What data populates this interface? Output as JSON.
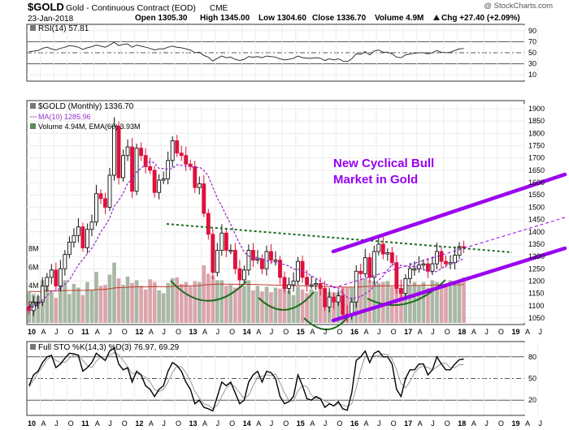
{
  "header": {
    "symbol": "$GOLD",
    "description": "Gold - Continuous Contract (EOD)",
    "exchange": "CME",
    "watermark": "@ StockCharts.com",
    "date": "23-Jan-2018",
    "open": "Open 1305.30",
    "high": "High 1345.00",
    "low": "Low 1304.60",
    "close": "Close 1336.70",
    "volume": "Volume 4.9M",
    "change": "Chg +27.40 (+2.09%)",
    "change_arrow": "up-triangle-icon"
  },
  "colors": {
    "up": "#111111",
    "down": "#e0103c",
    "ma": "#9933cc",
    "channel": "#9900ee",
    "neckline": "#1f6b1f",
    "arcs": "#1f6b1f",
    "vol_up": "#a9b8a4",
    "vol_down": "#dca4ad",
    "ema": "#c0392b"
  },
  "rsi": {
    "label": "RSI(14) 57.81",
    "ticks": [
      10,
      30,
      50,
      70,
      90
    ]
  },
  "price": {
    "legend_title": "$GOLD (Monthly) 1336.70",
    "legend_ma": "MA(10) 1285.96",
    "legend_vol": "Volume 4.94M, EMA(60) 3.93M",
    "ticks": [
      1050,
      1100,
      1150,
      1200,
      1250,
      1300,
      1350,
      1400,
      1450,
      1500,
      1550,
      1600,
      1650,
      1700,
      1750,
      1800,
      1850,
      1900
    ],
    "vol_ticks": [
      "2M",
      "4M",
      "6M",
      "8M"
    ],
    "annotation_line1": "New Cyclical Bull",
    "annotation_line2": "Market in Gold"
  },
  "sto": {
    "label": "Full STO %K(14,3) %D(3) 76.97, 69.29",
    "ticks": [
      20,
      50,
      80
    ]
  },
  "x_axis": {
    "labels": [
      "10",
      "A",
      "J",
      "O",
      "11",
      "A",
      "J",
      "O",
      "12",
      "A",
      "J",
      "O",
      "13",
      "A",
      "J",
      "O",
      "14",
      "A",
      "J",
      "O",
      "15",
      "A",
      "J",
      "O",
      "16",
      "A",
      "J",
      "O",
      "17",
      "A",
      "J",
      "O",
      "18",
      "A",
      "J",
      "O",
      "19",
      "A",
      "J"
    ]
  },
  "chart_data": {
    "type": "candlestick",
    "title": "$GOLD (Monthly)",
    "start": "2010-01",
    "ylim": [
      1030,
      1920
    ],
    "close": [
      1080,
      1115,
      1115,
      1180,
      1215,
      1245,
      1180,
      1250,
      1308,
      1358,
      1385,
      1420,
      1335,
      1410,
      1440,
      1555,
      1535,
      1500,
      1630,
      1830,
      1620,
      1710,
      1745,
      1565,
      1740,
      1710,
      1665,
      1650,
      1560,
      1610,
      1615,
      1690,
      1770,
      1720,
      1710,
      1675,
      1665,
      1580,
      1595,
      1475,
      1390,
      1235,
      1325,
      1395,
      1325,
      1325,
      1250,
      1205,
      1245,
      1325,
      1285,
      1290,
      1250,
      1320,
      1285,
      1285,
      1215,
      1170,
      1185,
      1200,
      1280,
      1215,
      1185,
      1185,
      1190,
      1170,
      1095,
      1135,
      1115,
      1140,
      1065,
      1060,
      1115,
      1240,
      1230,
      1295,
      1215,
      1320,
      1350,
      1310,
      1315,
      1275,
      1170,
      1150,
      1210,
      1250,
      1250,
      1265,
      1270,
      1240,
      1270,
      1320,
      1280,
      1270,
      1275,
      1305,
      1340,
      1336
    ],
    "rsi": [
      52,
      53,
      54,
      58,
      60,
      57,
      55,
      58,
      60,
      63,
      62,
      60,
      56,
      59,
      61,
      64,
      62,
      60,
      64,
      69,
      63,
      65,
      66,
      60,
      64,
      62,
      60,
      58,
      55,
      57,
      57,
      60,
      62,
      60,
      59,
      57,
      55,
      50,
      51,
      45,
      42,
      35,
      40,
      44,
      41,
      42,
      38,
      36,
      38,
      43,
      42,
      43,
      41,
      44,
      43,
      42,
      39,
      37,
      38,
      40,
      44,
      41,
      40,
      40,
      41,
      40,
      36,
      39,
      37,
      39,
      35,
      34,
      39,
      48,
      47,
      52,
      46,
      53,
      55,
      51,
      51,
      48,
      42,
      41,
      46,
      48,
      49,
      50,
      50,
      48,
      50,
      54,
      51,
      50,
      51,
      54,
      57,
      57.81
    ],
    "sto_k": [
      40,
      55,
      60,
      72,
      80,
      82,
      65,
      70,
      78,
      85,
      84,
      82,
      60,
      65,
      72,
      85,
      80,
      75,
      88,
      92,
      70,
      62,
      65,
      45,
      60,
      55,
      40,
      35,
      25,
      35,
      40,
      60,
      72,
      68,
      60,
      45,
      35,
      15,
      20,
      10,
      8,
      5,
      25,
      45,
      40,
      45,
      30,
      15,
      20,
      45,
      55,
      60,
      45,
      60,
      58,
      50,
      25,
      15,
      18,
      25,
      55,
      40,
      22,
      20,
      25,
      22,
      10,
      15,
      12,
      18,
      8,
      6,
      30,
      75,
      80,
      88,
      72,
      85,
      88,
      80,
      80,
      70,
      35,
      25,
      50,
      62,
      62,
      70,
      70,
      55,
      62,
      80,
      70,
      62,
      62,
      70,
      76,
      76.97
    ],
    "sto_d": [
      38,
      48,
      58,
      66,
      76,
      81,
      75,
      72,
      72,
      78,
      83,
      83,
      75,
      68,
      65,
      74,
      80,
      80,
      82,
      86,
      83,
      75,
      66,
      57,
      57,
      55,
      52,
      45,
      35,
      32,
      35,
      45,
      58,
      67,
      66,
      58,
      47,
      32,
      23,
      15,
      13,
      8,
      13,
      25,
      37,
      43,
      38,
      30,
      22,
      27,
      40,
      52,
      53,
      55,
      54,
      56,
      44,
      30,
      19,
      19,
      33,
      40,
      39,
      27,
      22,
      22,
      19,
      16,
      12,
      15,
      13,
      11,
      15,
      37,
      62,
      81,
      80,
      81,
      82,
      84,
      83,
      77,
      62,
      43,
      37,
      46,
      58,
      65,
      67,
      65,
      62,
      66,
      71,
      71,
      65,
      65,
      69,
      69.29
    ],
    "volume_millions": [
      3.4,
      3.1,
      2.9,
      4.6,
      4.8,
      3.3,
      2.7,
      4.3,
      4.6,
      3.1,
      4.2,
      3.8,
      3.0,
      4.4,
      3.5,
      5.5,
      4.0,
      4.1,
      5.2,
      6.5,
      4.8,
      4.1,
      5.0,
      4.3,
      4.6,
      4.0,
      3.6,
      4.7,
      4.4,
      3.5,
      3.2,
      4.3,
      4.8,
      4.9,
      4.2,
      4.4,
      3.9,
      4.5,
      4.4,
      6.2,
      5.3,
      5.1,
      4.6,
      4.6,
      4.0,
      4.1,
      3.8,
      3.9,
      4.0,
      4.6,
      3.5,
      4.0,
      3.4,
      3.9,
      3.3,
      3.8,
      3.7,
      4.2,
      3.5,
      3.0,
      3.9,
      3.6,
      3.2,
      3.6,
      3.4,
      3.7,
      3.5,
      3.3,
      3.3,
      3.3,
      3.8,
      3.8,
      3.8,
      4.2,
      4.6,
      4.8,
      4.6,
      4.5,
      4.3,
      4.4,
      4.5,
      3.9,
      4.9,
      3.8,
      4.4,
      4.1,
      4.4,
      4.0,
      4.4,
      3.8,
      4.6,
      4.4,
      4.2,
      4.0,
      4.6,
      4.1,
      4.5,
      4.9
    ]
  }
}
